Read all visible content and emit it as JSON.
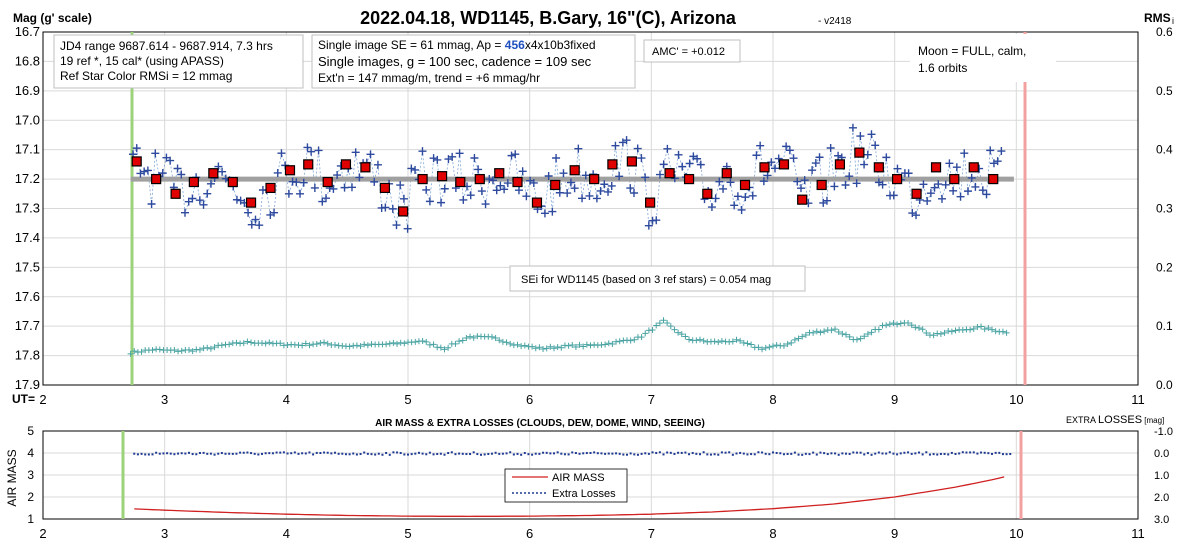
{
  "top": {
    "title": "2022.04.18, WD1145, B.Gary, 16\"(C), Arizona",
    "version": "- v2418",
    "ylabel_left": "Mag (g' scale)",
    "ylabel_right": "RMS",
    "ylabel_right_sub": "i",
    "xlabel": "UT="
  },
  "boxes": {
    "box1": [
      "JD4 range 9687.614 - 9687.914, 7.3 hrs",
      "19 ref *, 15 cal* (using APASS)",
      "Ref Star Color RMSi = 12 mmag"
    ],
    "box2_line1_pre": "Single image SE = 61 mmag, Ap = ",
    "box2_line1_hl": "456",
    "box2_line1_post": "x4x10b3fixed",
    "box2_line2": "Single images, g = 100 sec, cadence = 109 sec",
    "box2_line3": "Ext'n = 147 mmag/m, trend = +6 mmag/hr",
    "amc": "AMC' = +0.012",
    "moon": [
      "Moon = FULL, calm,",
      "1.6 orbits"
    ],
    "sei": "SEi for WD1145 (based on 3 ref stars) = 0.054 mag"
  },
  "bottom": {
    "title": "AIR MASS & EXTRA LOSSES (CLOUDS, DEW, DOME, WIND, SEEING)",
    "ylabel_left": "AIR MASS",
    "ylabel_right_pre": "EXTRA ",
    "ylabel_right_big": "LOSSES",
    "ylabel_right_unit": " [mag]",
    "legend": [
      "AIR MASS",
      "Extra Losses"
    ]
  },
  "colors": {
    "single": "#2E4A9E",
    "avg_fill": "#E00000",
    "model": "#A0A0A0",
    "rms": "#4AA3A3",
    "ingress": "#9BD27A",
    "egress": "#F2A0A0",
    "airmass": "#D02020",
    "losses": "#1F3A93",
    "highlight": "#1F4FBF"
  },
  "chart_data": [
    {
      "type": "scatter",
      "title": "2022.04.18, WD1145, B.Gary, 16\"(C), Arizona",
      "xlabel": "UT=",
      "ylabel": "Mag (g' scale)",
      "xlim": [
        2,
        11
      ],
      "ylim": [
        17.9,
        16.7
      ],
      "y2label": "RMS i",
      "y2lim": [
        0.0,
        0.6
      ],
      "grid": true,
      "x_ticks": [
        2,
        3,
        4,
        5,
        6,
        7,
        8,
        9,
        10,
        11
      ],
      "y_ticks": [
        16.7,
        16.8,
        16.9,
        17.0,
        17.1,
        17.2,
        17.3,
        17.4,
        17.5,
        17.6,
        17.7,
        17.8,
        17.9
      ],
      "y2_ticks": [
        0.0,
        0.1,
        0.2,
        0.3,
        0.4,
        0.5,
        0.6
      ],
      "vlines": {
        "ingress": 2.65,
        "egress": 10.0
      },
      "model_line": {
        "x": [
          2.72,
          9.98
        ],
        "y": [
          17.2,
          17.2
        ]
      },
      "series": [
        {
          "name": "avg",
          "x": [
            2.77,
            2.93,
            3.09,
            3.24,
            3.4,
            3.56,
            3.71,
            3.87,
            4.03,
            4.18,
            4.34,
            4.49,
            4.65,
            4.81,
            4.96,
            5.12,
            5.28,
            5.43,
            5.59,
            5.75,
            5.9,
            6.06,
            6.21,
            6.37,
            6.53,
            6.68,
            6.84,
            6.99,
            7.15,
            7.31,
            7.46,
            7.62,
            7.77,
            7.93,
            8.09,
            8.24,
            8.4,
            8.55,
            8.71,
            8.87,
            9.02,
            9.18,
            9.34,
            9.49,
            9.65,
            9.81
          ],
          "y": [
            17.14,
            17.2,
            17.25,
            17.21,
            17.18,
            17.21,
            17.28,
            17.23,
            17.17,
            17.15,
            17.21,
            17.15,
            17.16,
            17.23,
            17.31,
            17.2,
            17.19,
            17.21,
            17.2,
            17.18,
            17.21,
            17.28,
            17.22,
            17.17,
            17.2,
            17.15,
            17.14,
            17.28,
            17.18,
            17.2,
            17.25,
            17.18,
            17.22,
            17.16,
            17.15,
            17.27,
            17.22,
            17.15,
            17.11,
            17.16,
            17.2,
            17.25,
            17.16,
            17.2,
            17.16,
            17.2
          ]
        },
        {
          "name": "rms",
          "x": [
            2.72,
            2.9,
            3.1,
            3.3,
            3.5,
            3.7,
            3.9,
            4.1,
            4.3,
            4.5,
            4.7,
            4.9,
            5.1,
            5.3,
            5.5,
            5.7,
            5.9,
            6.1,
            6.3,
            6.5,
            6.7,
            6.9,
            7.1,
            7.3,
            7.5,
            7.7,
            7.9,
            8.1,
            8.3,
            8.5,
            8.7,
            8.9,
            9.1,
            9.3,
            9.5,
            9.7,
            9.9
          ],
          "y": [
            0.055,
            0.06,
            0.058,
            0.06,
            0.068,
            0.073,
            0.07,
            0.068,
            0.071,
            0.066,
            0.068,
            0.07,
            0.075,
            0.062,
            0.082,
            0.08,
            0.068,
            0.062,
            0.066,
            0.067,
            0.072,
            0.08,
            0.108,
            0.078,
            0.073,
            0.075,
            0.062,
            0.068,
            0.088,
            0.095,
            0.075,
            0.1,
            0.108,
            0.085,
            0.092,
            0.098,
            0.09
          ]
        }
      ]
    },
    {
      "type": "line",
      "title": "AIR MASS & EXTRA LOSSES (CLOUDS, DEW, DOME, WIND, SEEING)",
      "xlabel": "",
      "ylabel": "AIR MASS",
      "xlim": [
        2,
        11
      ],
      "ylim": [
        1,
        5
      ],
      "y2label": "EXTRA LOSSES [mag]",
      "y2lim": [
        3.0,
        -1.0
      ],
      "grid": true,
      "x_ticks": [
        2,
        3,
        4,
        5,
        6,
        7,
        8,
        9,
        10,
        11
      ],
      "y_ticks": [
        1,
        2,
        3,
        4,
        5
      ],
      "y2_ticks": [
        -1.0,
        0.0,
        1.0,
        2.0,
        3.0
      ],
      "legend": "center",
      "series": [
        {
          "name": "AIR MASS",
          "x": [
            2.75,
            3.0,
            3.5,
            4.0,
            4.5,
            5.0,
            5.5,
            6.0,
            6.5,
            7.0,
            7.5,
            8.0,
            8.5,
            9.0,
            9.5,
            9.8,
            9.95
          ],
          "y": [
            1.46,
            1.4,
            1.3,
            1.22,
            1.16,
            1.13,
            1.12,
            1.13,
            1.16,
            1.22,
            1.32,
            1.47,
            1.68,
            2.0,
            2.45,
            2.78,
            2.98
          ]
        },
        {
          "name": "Extra Losses",
          "x": [
            2.75,
            9.95
          ],
          "y": [
            0.0,
            0.0
          ]
        }
      ]
    }
  ]
}
